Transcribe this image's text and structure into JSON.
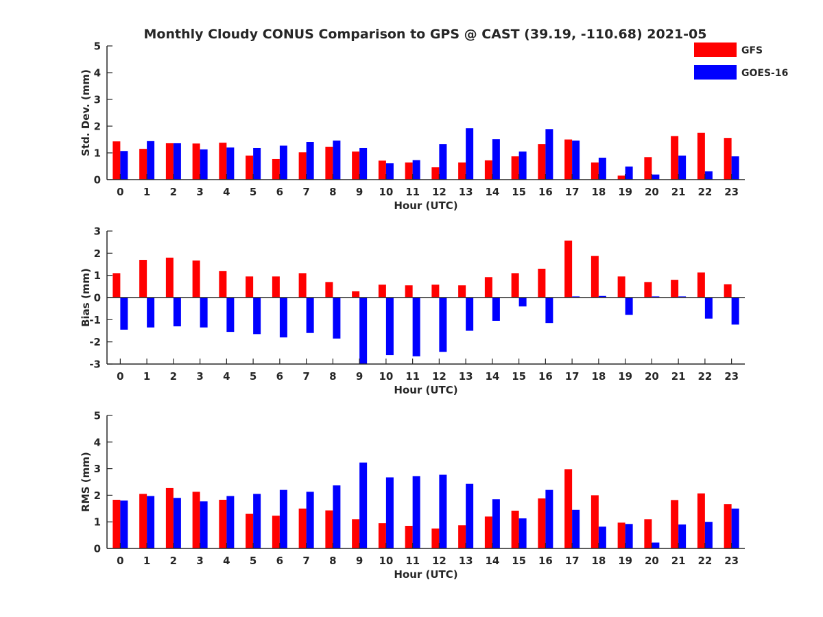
{
  "title": "Monthly Cloudy CONUS Comparison to GPS @ CAST (39.19, -110.68) 2021-05",
  "legend": {
    "placement": "top-right",
    "entries": [
      {
        "label": "GFS",
        "color": "#ff0000"
      },
      {
        "label": "GOES-16",
        "color": "#0000ff"
      }
    ]
  },
  "colors": {
    "gfs": "#ff0000",
    "goes": "#0000ff",
    "axis": "#262626"
  },
  "chart_data": [
    {
      "type": "bar",
      "xlabel": "Hour (UTC)",
      "ylabel": "Std. Dev. (mm)",
      "ylim": [
        0,
        5
      ],
      "yticks": [
        0,
        1,
        2,
        3,
        4,
        5
      ],
      "categories": [
        "0",
        "1",
        "2",
        "3",
        "4",
        "5",
        "6",
        "7",
        "8",
        "9",
        "10",
        "11",
        "12",
        "13",
        "14",
        "15",
        "16",
        "17",
        "18",
        "19",
        "20",
        "21",
        "22",
        "23"
      ],
      "series": [
        {
          "name": "GFS",
          "values": [
            1.43,
            1.15,
            1.36,
            1.35,
            1.38,
            0.9,
            0.77,
            1.02,
            1.23,
            1.05,
            0.71,
            0.64,
            0.46,
            0.64,
            0.72,
            0.87,
            1.33,
            1.5,
            0.64,
            0.15,
            0.84,
            1.63,
            1.75,
            1.56
          ]
        },
        {
          "name": "GOES-16",
          "values": [
            1.07,
            1.44,
            1.36,
            1.13,
            1.2,
            1.18,
            1.27,
            1.41,
            1.46,
            1.18,
            0.61,
            0.73,
            1.33,
            1.92,
            1.51,
            1.05,
            1.89,
            1.46,
            0.82,
            0.49,
            0.19,
            0.9,
            0.31,
            0.87
          ]
        }
      ],
      "grid": false
    },
    {
      "type": "bar",
      "xlabel": "Hour (UTC)",
      "ylabel": "Bias (mm)",
      "ylim": [
        -3,
        3
      ],
      "yticks": [
        -3,
        -2,
        -1,
        0,
        1,
        2,
        3
      ],
      "categories": [
        "0",
        "1",
        "2",
        "3",
        "4",
        "5",
        "6",
        "7",
        "8",
        "9",
        "10",
        "11",
        "12",
        "13",
        "14",
        "15",
        "16",
        "17",
        "18",
        "19",
        "20",
        "21",
        "22",
        "23"
      ],
      "series": [
        {
          "name": "GFS",
          "values": [
            1.1,
            1.7,
            1.8,
            1.67,
            1.2,
            0.95,
            0.95,
            1.1,
            0.7,
            0.28,
            0.58,
            0.55,
            0.58,
            0.55,
            0.92,
            1.1,
            1.3,
            2.57,
            1.88,
            0.95,
            0.7,
            0.8,
            1.13,
            0.6
          ]
        },
        {
          "name": "GOES-16",
          "values": [
            -1.45,
            -1.35,
            -1.3,
            -1.35,
            -1.55,
            -1.65,
            -1.8,
            -1.6,
            -1.85,
            -3.0,
            -2.6,
            -2.65,
            -2.45,
            -1.5,
            -1.05,
            -0.4,
            -1.15,
            0.05,
            0.07,
            -0.78,
            0.05,
            0.05,
            -0.95,
            -1.22
          ]
        }
      ],
      "grid": false
    },
    {
      "type": "bar",
      "xlabel": "Hour (UTC)",
      "ylabel": "RMS (mm)",
      "ylim": [
        0,
        5
      ],
      "yticks": [
        0,
        1,
        2,
        3,
        4,
        5
      ],
      "categories": [
        "0",
        "1",
        "2",
        "3",
        "4",
        "5",
        "6",
        "7",
        "8",
        "9",
        "10",
        "11",
        "12",
        "13",
        "14",
        "15",
        "16",
        "17",
        "18",
        "19",
        "20",
        "21",
        "22",
        "23"
      ],
      "series": [
        {
          "name": "GFS",
          "values": [
            1.83,
            2.05,
            2.27,
            2.13,
            1.83,
            1.3,
            1.23,
            1.5,
            1.43,
            1.1,
            0.95,
            0.85,
            0.75,
            0.87,
            1.2,
            1.42,
            1.88,
            2.98,
            2.0,
            0.97,
            1.1,
            1.82,
            2.07,
            1.67
          ]
        },
        {
          "name": "GOES-16",
          "values": [
            1.8,
            1.97,
            1.9,
            1.77,
            1.97,
            2.05,
            2.2,
            2.13,
            2.37,
            3.23,
            2.67,
            2.72,
            2.77,
            2.43,
            1.85,
            1.13,
            2.2,
            1.45,
            0.82,
            0.92,
            0.22,
            0.9,
            1.0,
            1.5
          ]
        }
      ],
      "grid": false
    }
  ]
}
